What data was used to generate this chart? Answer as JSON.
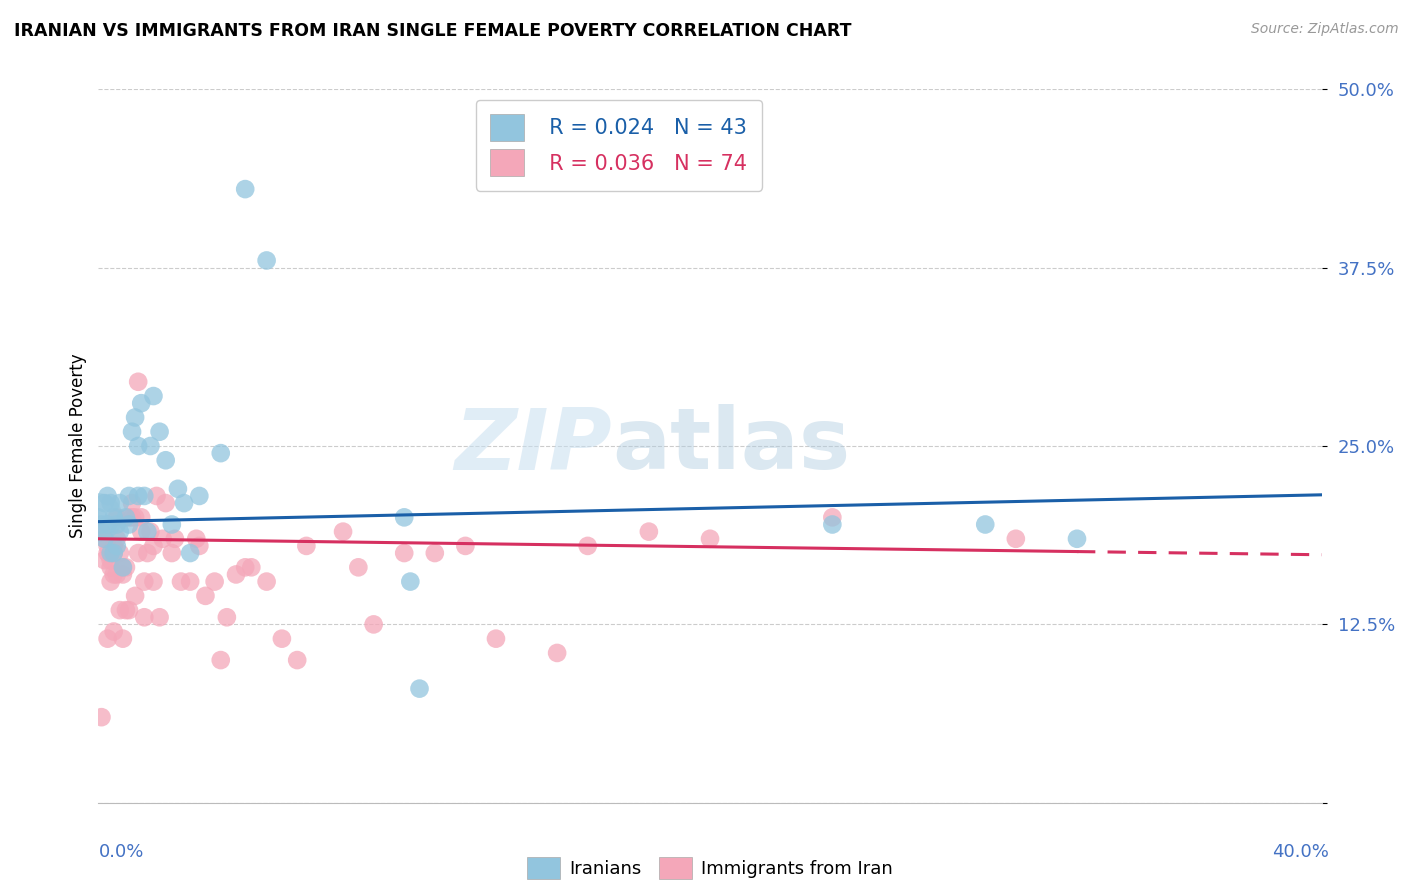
{
  "title": "IRANIAN VS IMMIGRANTS FROM IRAN SINGLE FEMALE POVERTY CORRELATION CHART",
  "source": "Source: ZipAtlas.com",
  "ylabel": "Single Female Poverty",
  "legend_blue_R": "R = 0.024",
  "legend_blue_N": "N = 43",
  "legend_pink_R": "R = 0.036",
  "legend_pink_N": "N = 74",
  "blue_color": "#92c5de",
  "pink_color": "#f4a7b9",
  "blue_line_color": "#1a5fa8",
  "pink_line_color": "#d63060",
  "watermark_zip": "ZIP",
  "watermark_atlas": "atlas",
  "xlim": [
    0.0,
    0.4
  ],
  "ylim": [
    0.0,
    0.5
  ],
  "ytick_vals": [
    0.0,
    0.125,
    0.25,
    0.375,
    0.5
  ],
  "ytick_labels": [
    "",
    "12.5%",
    "25.0%",
    "37.5%",
    "50.0%"
  ],
  "blue_trend": [
    0.197,
    0.047
  ],
  "pink_trend_solid_end": 0.32,
  "pink_trend": [
    0.185,
    -0.028
  ],
  "iranians_x": [
    0.0,
    0.001,
    0.002,
    0.002,
    0.003,
    0.003,
    0.004,
    0.004,
    0.005,
    0.005,
    0.006,
    0.006,
    0.007,
    0.007,
    0.008,
    0.009,
    0.01,
    0.01,
    0.011,
    0.012,
    0.013,
    0.013,
    0.014,
    0.015,
    0.016,
    0.017,
    0.018,
    0.02,
    0.022,
    0.024,
    0.026,
    0.028,
    0.03,
    0.033,
    0.04,
    0.048,
    0.055,
    0.1,
    0.102,
    0.105,
    0.24,
    0.29,
    0.32
  ],
  "iranians_y": [
    0.2,
    0.195,
    0.21,
    0.185,
    0.195,
    0.215,
    0.175,
    0.21,
    0.175,
    0.2,
    0.195,
    0.18,
    0.21,
    0.19,
    0.165,
    0.2,
    0.215,
    0.195,
    0.26,
    0.27,
    0.25,
    0.215,
    0.28,
    0.215,
    0.19,
    0.25,
    0.285,
    0.26,
    0.24,
    0.195,
    0.22,
    0.21,
    0.175,
    0.215,
    0.245,
    0.43,
    0.38,
    0.2,
    0.155,
    0.08,
    0.195,
    0.195,
    0.185
  ],
  "iranians_big": [
    0.0,
    0.2
  ],
  "immigrants_x": [
    0.001,
    0.001,
    0.002,
    0.002,
    0.003,
    0.003,
    0.003,
    0.004,
    0.004,
    0.004,
    0.005,
    0.005,
    0.005,
    0.005,
    0.006,
    0.006,
    0.006,
    0.007,
    0.007,
    0.008,
    0.008,
    0.008,
    0.009,
    0.009,
    0.01,
    0.01,
    0.011,
    0.011,
    0.012,
    0.012,
    0.013,
    0.013,
    0.014,
    0.014,
    0.015,
    0.015,
    0.016,
    0.017,
    0.018,
    0.018,
    0.019,
    0.02,
    0.021,
    0.022,
    0.024,
    0.025,
    0.027,
    0.03,
    0.032,
    0.033,
    0.035,
    0.038,
    0.04,
    0.042,
    0.045,
    0.048,
    0.05,
    0.055,
    0.06,
    0.065,
    0.068,
    0.08,
    0.085,
    0.09,
    0.1,
    0.11,
    0.12,
    0.13,
    0.15,
    0.16,
    0.18,
    0.2,
    0.24,
    0.3
  ],
  "immigrants_y": [
    0.19,
    0.06,
    0.185,
    0.17,
    0.175,
    0.115,
    0.18,
    0.165,
    0.155,
    0.17,
    0.175,
    0.18,
    0.12,
    0.16,
    0.185,
    0.2,
    0.16,
    0.175,
    0.135,
    0.115,
    0.16,
    0.165,
    0.135,
    0.165,
    0.2,
    0.135,
    0.2,
    0.21,
    0.2,
    0.145,
    0.295,
    0.175,
    0.19,
    0.2,
    0.13,
    0.155,
    0.175,
    0.19,
    0.155,
    0.18,
    0.215,
    0.13,
    0.185,
    0.21,
    0.175,
    0.185,
    0.155,
    0.155,
    0.185,
    0.18,
    0.145,
    0.155,
    0.1,
    0.13,
    0.16,
    0.165,
    0.165,
    0.155,
    0.115,
    0.1,
    0.18,
    0.19,
    0.165,
    0.125,
    0.175,
    0.175,
    0.18,
    0.115,
    0.105,
    0.18,
    0.19,
    0.185,
    0.2,
    0.185
  ]
}
